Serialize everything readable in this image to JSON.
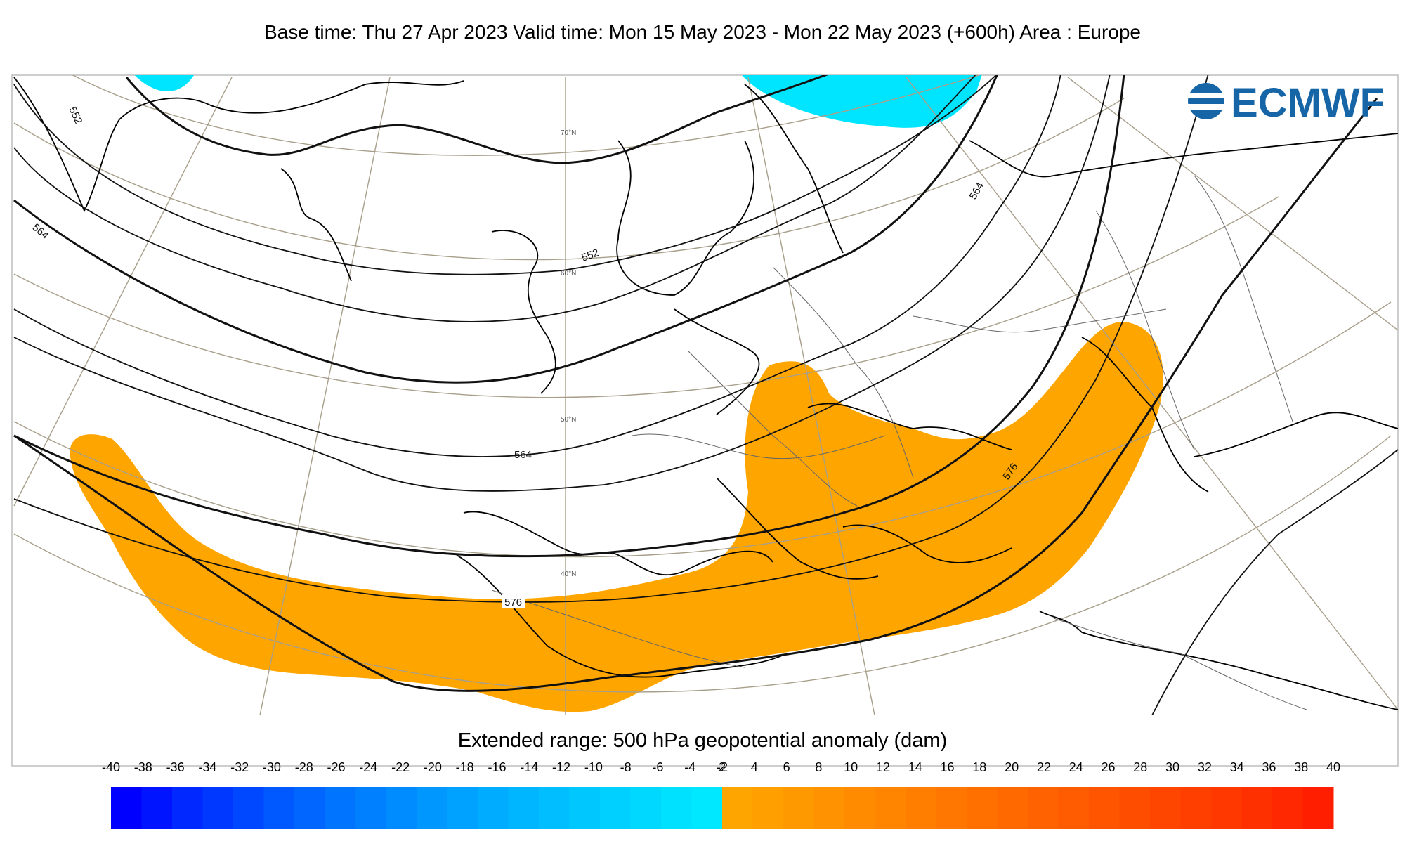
{
  "header": {
    "title": "Base time: Thu 27 Apr 2023 Valid time: Mon 15 May 2023 - Mon 22 May 2023 (+600h) Area : Europe"
  },
  "map": {
    "logo_text": "ECMWF",
    "latitude_labels": [
      "70°N",
      "60°N",
      "50°N",
      "40°N"
    ],
    "contour_labels": [
      "552",
      "552",
      "564",
      "564",
      "564",
      "576",
      "576"
    ],
    "colors": {
      "positive_anomaly": "#FFA500",
      "negative_anomaly": "#00E5FF",
      "contour": "#111111",
      "graticule": "#A89F8A",
      "coastline": "#000000",
      "logo": "#1565A7"
    }
  },
  "legend": {
    "title": "Extended range: 500 hPa geopotential anomaly (dam)",
    "negative_ticks": [
      "-40",
      "-38",
      "-36",
      "-34",
      "-32",
      "-30",
      "-28",
      "-26",
      "-24",
      "-22",
      "-20",
      "-18",
      "-16",
      "-14",
      "-12",
      "-10",
      "-8",
      "-6",
      "-4",
      "-2"
    ],
    "positive_ticks": [
      "2",
      "4",
      "6",
      "8",
      "10",
      "12",
      "14",
      "16",
      "18",
      "20",
      "22",
      "24",
      "26",
      "28",
      "30",
      "32",
      "34",
      "36",
      "38",
      "40"
    ],
    "negative_colors": [
      "#0000FF",
      "#0014FF",
      "#0028FF",
      "#0038FF",
      "#0048FF",
      "#0058FF",
      "#0066FF",
      "#0074FF",
      "#0080FF",
      "#008CFF",
      "#0098FF",
      "#00A2FF",
      "#00ACFF",
      "#00B6FF",
      "#00BEFF",
      "#00C8FF",
      "#00D0FF",
      "#00D8FF",
      "#00E0FF",
      "#00E8FF"
    ],
    "positive_colors": [
      "#FFA500",
      "#FF9F00",
      "#FF9900",
      "#FF9200",
      "#FF8C00",
      "#FF8500",
      "#FF7E00",
      "#FF7700",
      "#FF7000",
      "#FF6900",
      "#FF6200",
      "#FF5B00",
      "#FF5400",
      "#FF4D00",
      "#FF4600",
      "#FF3F00",
      "#FF3800",
      "#FF3000",
      "#FF2800",
      "#FF1E00"
    ]
  }
}
